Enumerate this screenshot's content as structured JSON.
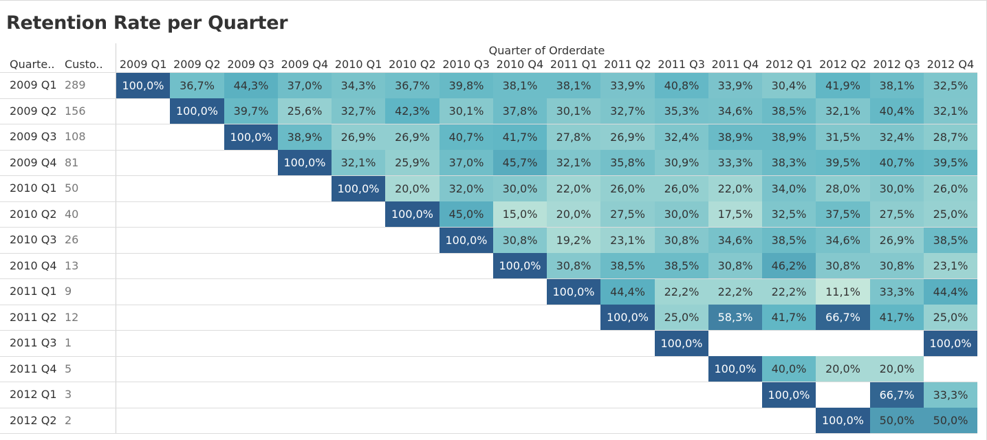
{
  "chart_data": {
    "type": "heatmap",
    "title": "Retention Rate per Quarter",
    "column_axis_title": "Quarter of Orderdate",
    "row_headers": [
      "Quarte..",
      "Custo.."
    ],
    "columns": [
      "2009 Q1",
      "2009 Q2",
      "2009 Q3",
      "2009 Q4",
      "2010 Q1",
      "2010 Q2",
      "2010 Q3",
      "2010 Q4",
      "2011 Q1",
      "2011 Q2",
      "2011 Q3",
      "2011 Q4",
      "2012 Q1",
      "2012 Q2",
      "2012 Q3",
      "2012 Q4"
    ],
    "rows": [
      {
        "label": "2009 Q1",
        "customers": "289",
        "start": 0,
        "values": [
          100.0,
          36.7,
          44.3,
          37.0,
          34.3,
          36.7,
          39.8,
          38.1,
          38.1,
          33.9,
          40.8,
          33.9,
          30.4,
          41.9,
          38.1,
          32.5
        ]
      },
      {
        "label": "2009 Q2",
        "customers": "156",
        "start": 1,
        "values": [
          100.0,
          39.7,
          25.6,
          32.7,
          42.3,
          30.1,
          37.8,
          30.1,
          32.7,
          35.3,
          34.6,
          38.5,
          32.1,
          40.4,
          32.1
        ]
      },
      {
        "label": "2009 Q3",
        "customers": "108",
        "start": 2,
        "values": [
          100.0,
          38.9,
          26.9,
          26.9,
          40.7,
          41.7,
          27.8,
          26.9,
          32.4,
          38.9,
          38.9,
          31.5,
          32.4,
          28.7
        ]
      },
      {
        "label": "2009 Q4",
        "customers": "81",
        "start": 3,
        "values": [
          100.0,
          32.1,
          25.9,
          37.0,
          45.7,
          32.1,
          35.8,
          30.9,
          33.3,
          38.3,
          39.5,
          40.7,
          39.5
        ]
      },
      {
        "label": "2010 Q1",
        "customers": "50",
        "start": 4,
        "values": [
          100.0,
          20.0,
          32.0,
          30.0,
          22.0,
          26.0,
          26.0,
          22.0,
          34.0,
          28.0,
          30.0,
          26.0
        ]
      },
      {
        "label": "2010 Q2",
        "customers": "40",
        "start": 5,
        "values": [
          100.0,
          45.0,
          15.0,
          20.0,
          27.5,
          30.0,
          17.5,
          32.5,
          37.5,
          27.5,
          25.0
        ]
      },
      {
        "label": "2010 Q3",
        "customers": "26",
        "start": 6,
        "values": [
          100.0,
          30.8,
          19.2,
          23.1,
          30.8,
          34.6,
          38.5,
          34.6,
          26.9,
          38.5
        ]
      },
      {
        "label": "2010 Q4",
        "customers": "13",
        "start": 7,
        "values": [
          100.0,
          30.8,
          38.5,
          38.5,
          30.8,
          46.2,
          30.8,
          30.8,
          23.1
        ]
      },
      {
        "label": "2011 Q1",
        "customers": "9",
        "start": 8,
        "values": [
          100.0,
          44.4,
          22.2,
          22.2,
          22.2,
          11.1,
          33.3,
          44.4
        ]
      },
      {
        "label": "2011 Q2",
        "customers": "12",
        "start": 9,
        "values": [
          100.0,
          25.0,
          58.3,
          41.7,
          66.7,
          41.7,
          25.0
        ]
      },
      {
        "label": "2011 Q3",
        "customers": "1",
        "start": 10,
        "values": [
          100.0,
          null,
          null,
          null,
          null,
          100.0
        ]
      },
      {
        "label": "2011 Q4",
        "customers": "5",
        "start": 11,
        "values": [
          100.0,
          40.0,
          20.0,
          20.0,
          null
        ]
      },
      {
        "label": "2012 Q1",
        "customers": "3",
        "start": 12,
        "values": [
          100.0,
          null,
          66.7,
          33.3
        ]
      },
      {
        "label": "2012 Q2",
        "customers": "2",
        "start": 13,
        "values": [
          100.0,
          50.0,
          50.0
        ]
      }
    ],
    "value_format": "percent with comma decimal",
    "color_scale": {
      "low": "#c8e9dc",
      "mid": "#5db5c4",
      "high": "#2c5a8a"
    },
    "diagonal_color": "#2d5b8b",
    "grid": false,
    "legend": "none"
  }
}
